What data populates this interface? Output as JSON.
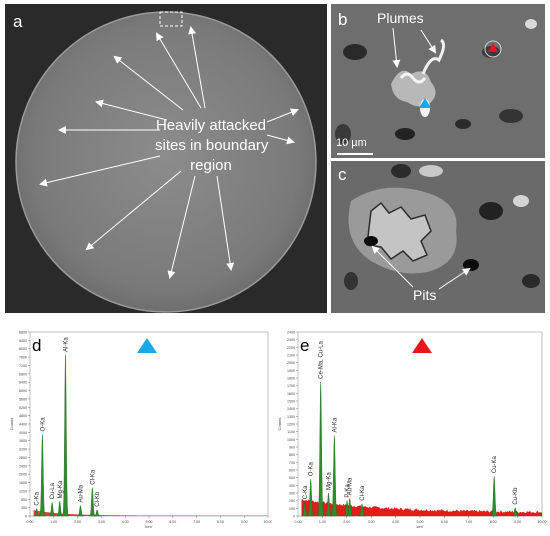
{
  "panel_a": {
    "label": "a",
    "annotation": [
      "Heavily attacked",
      "sites in boundary",
      "region"
    ]
  },
  "panel_b": {
    "label": "b",
    "plumes_label": "Plumes",
    "scale_bar": "10 µm",
    "marker_colors": {
      "blue": "#1aa7e8",
      "red": "#e8151b"
    }
  },
  "panel_c": {
    "label": "c",
    "pits_label": "Pits"
  },
  "chart_data": [
    {
      "panel": "d",
      "type": "area",
      "marker": "blue-triangle",
      "xlabel": "keV",
      "ylabel": "Counts",
      "xlim": [
        0,
        10
      ],
      "ylim": [
        0,
        8800
      ],
      "x_ticks": [
        "0.00",
        "1.00",
        "2.00",
        "3.00",
        "4.00",
        "5.00",
        "6.00",
        "7.00",
        "8.00",
        "9.00",
        "10.00"
      ],
      "y_ticks": [
        "0",
        "400",
        "800",
        "1200",
        "1600",
        "2000",
        "2400",
        "2800",
        "3200",
        "3600",
        "4000",
        "4400",
        "4800",
        "5200",
        "5600",
        "6000",
        "6400",
        "6800",
        "7200",
        "7600",
        "8000",
        "8400",
        "8800"
      ],
      "peaks": [
        {
          "label": "C-Ka",
          "x": 0.28,
          "y": 350
        },
        {
          "label": "O-Ka",
          "x": 0.52,
          "y": 3900
        },
        {
          "label": "Cu-La",
          "x": 0.93,
          "y": 650
        },
        {
          "label": "Mg-Ka",
          "x": 1.25,
          "y": 700
        },
        {
          "label": "Al-Ka",
          "x": 1.49,
          "y": 7700
        },
        {
          "label": "Au-Ma",
          "x": 2.12,
          "y": 500
        },
        {
          "label": "Cl-Ka",
          "x": 2.62,
          "y": 1350
        },
        {
          "label": "Cl-Kb",
          "x": 2.82,
          "y": 300
        }
      ]
    },
    {
      "panel": "e",
      "type": "area",
      "marker": "red-triangle",
      "xlabel": "keV",
      "ylabel": "Counts",
      "xlim": [
        0,
        10
      ],
      "ylim": [
        0,
        2400
      ],
      "x_ticks": [
        "0.00",
        "1.00",
        "2.00",
        "3.00",
        "4.00",
        "5.00",
        "6.00",
        "7.00",
        "8.00",
        "9.00",
        "10.00"
      ],
      "y_ticks": [
        "0",
        "100",
        "200",
        "300",
        "400",
        "500",
        "600",
        "700",
        "800",
        "900",
        "1000",
        "1100",
        "1200",
        "1300",
        "1400",
        "1500",
        "1600",
        "1700",
        "1800",
        "1900",
        "2000",
        "2100",
        "2200",
        "2300",
        "2400"
      ],
      "peaks": [
        {
          "label": "C-Ka",
          "x": 0.28,
          "y": 180
        },
        {
          "label": "O-Ka",
          "x": 0.52,
          "y": 480
        },
        {
          "label": "Ce-Ma, Cu-La",
          "x": 0.93,
          "y": 1750
        },
        {
          "label": "Mg-Ka",
          "x": 1.25,
          "y": 300
        },
        {
          "label": "Al-Ka",
          "x": 1.49,
          "y": 1050
        },
        {
          "label": "P-Ka",
          "x": 2.01,
          "y": 200
        },
        {
          "label": "Au-Ma",
          "x": 2.12,
          "y": 230
        },
        {
          "label": "Cl-Ka",
          "x": 2.62,
          "y": 160
        },
        {
          "label": "Cu-Ka",
          "x": 8.04,
          "y": 520
        },
        {
          "label": "Cu-Kb",
          "x": 8.9,
          "y": 110
        }
      ]
    }
  ]
}
